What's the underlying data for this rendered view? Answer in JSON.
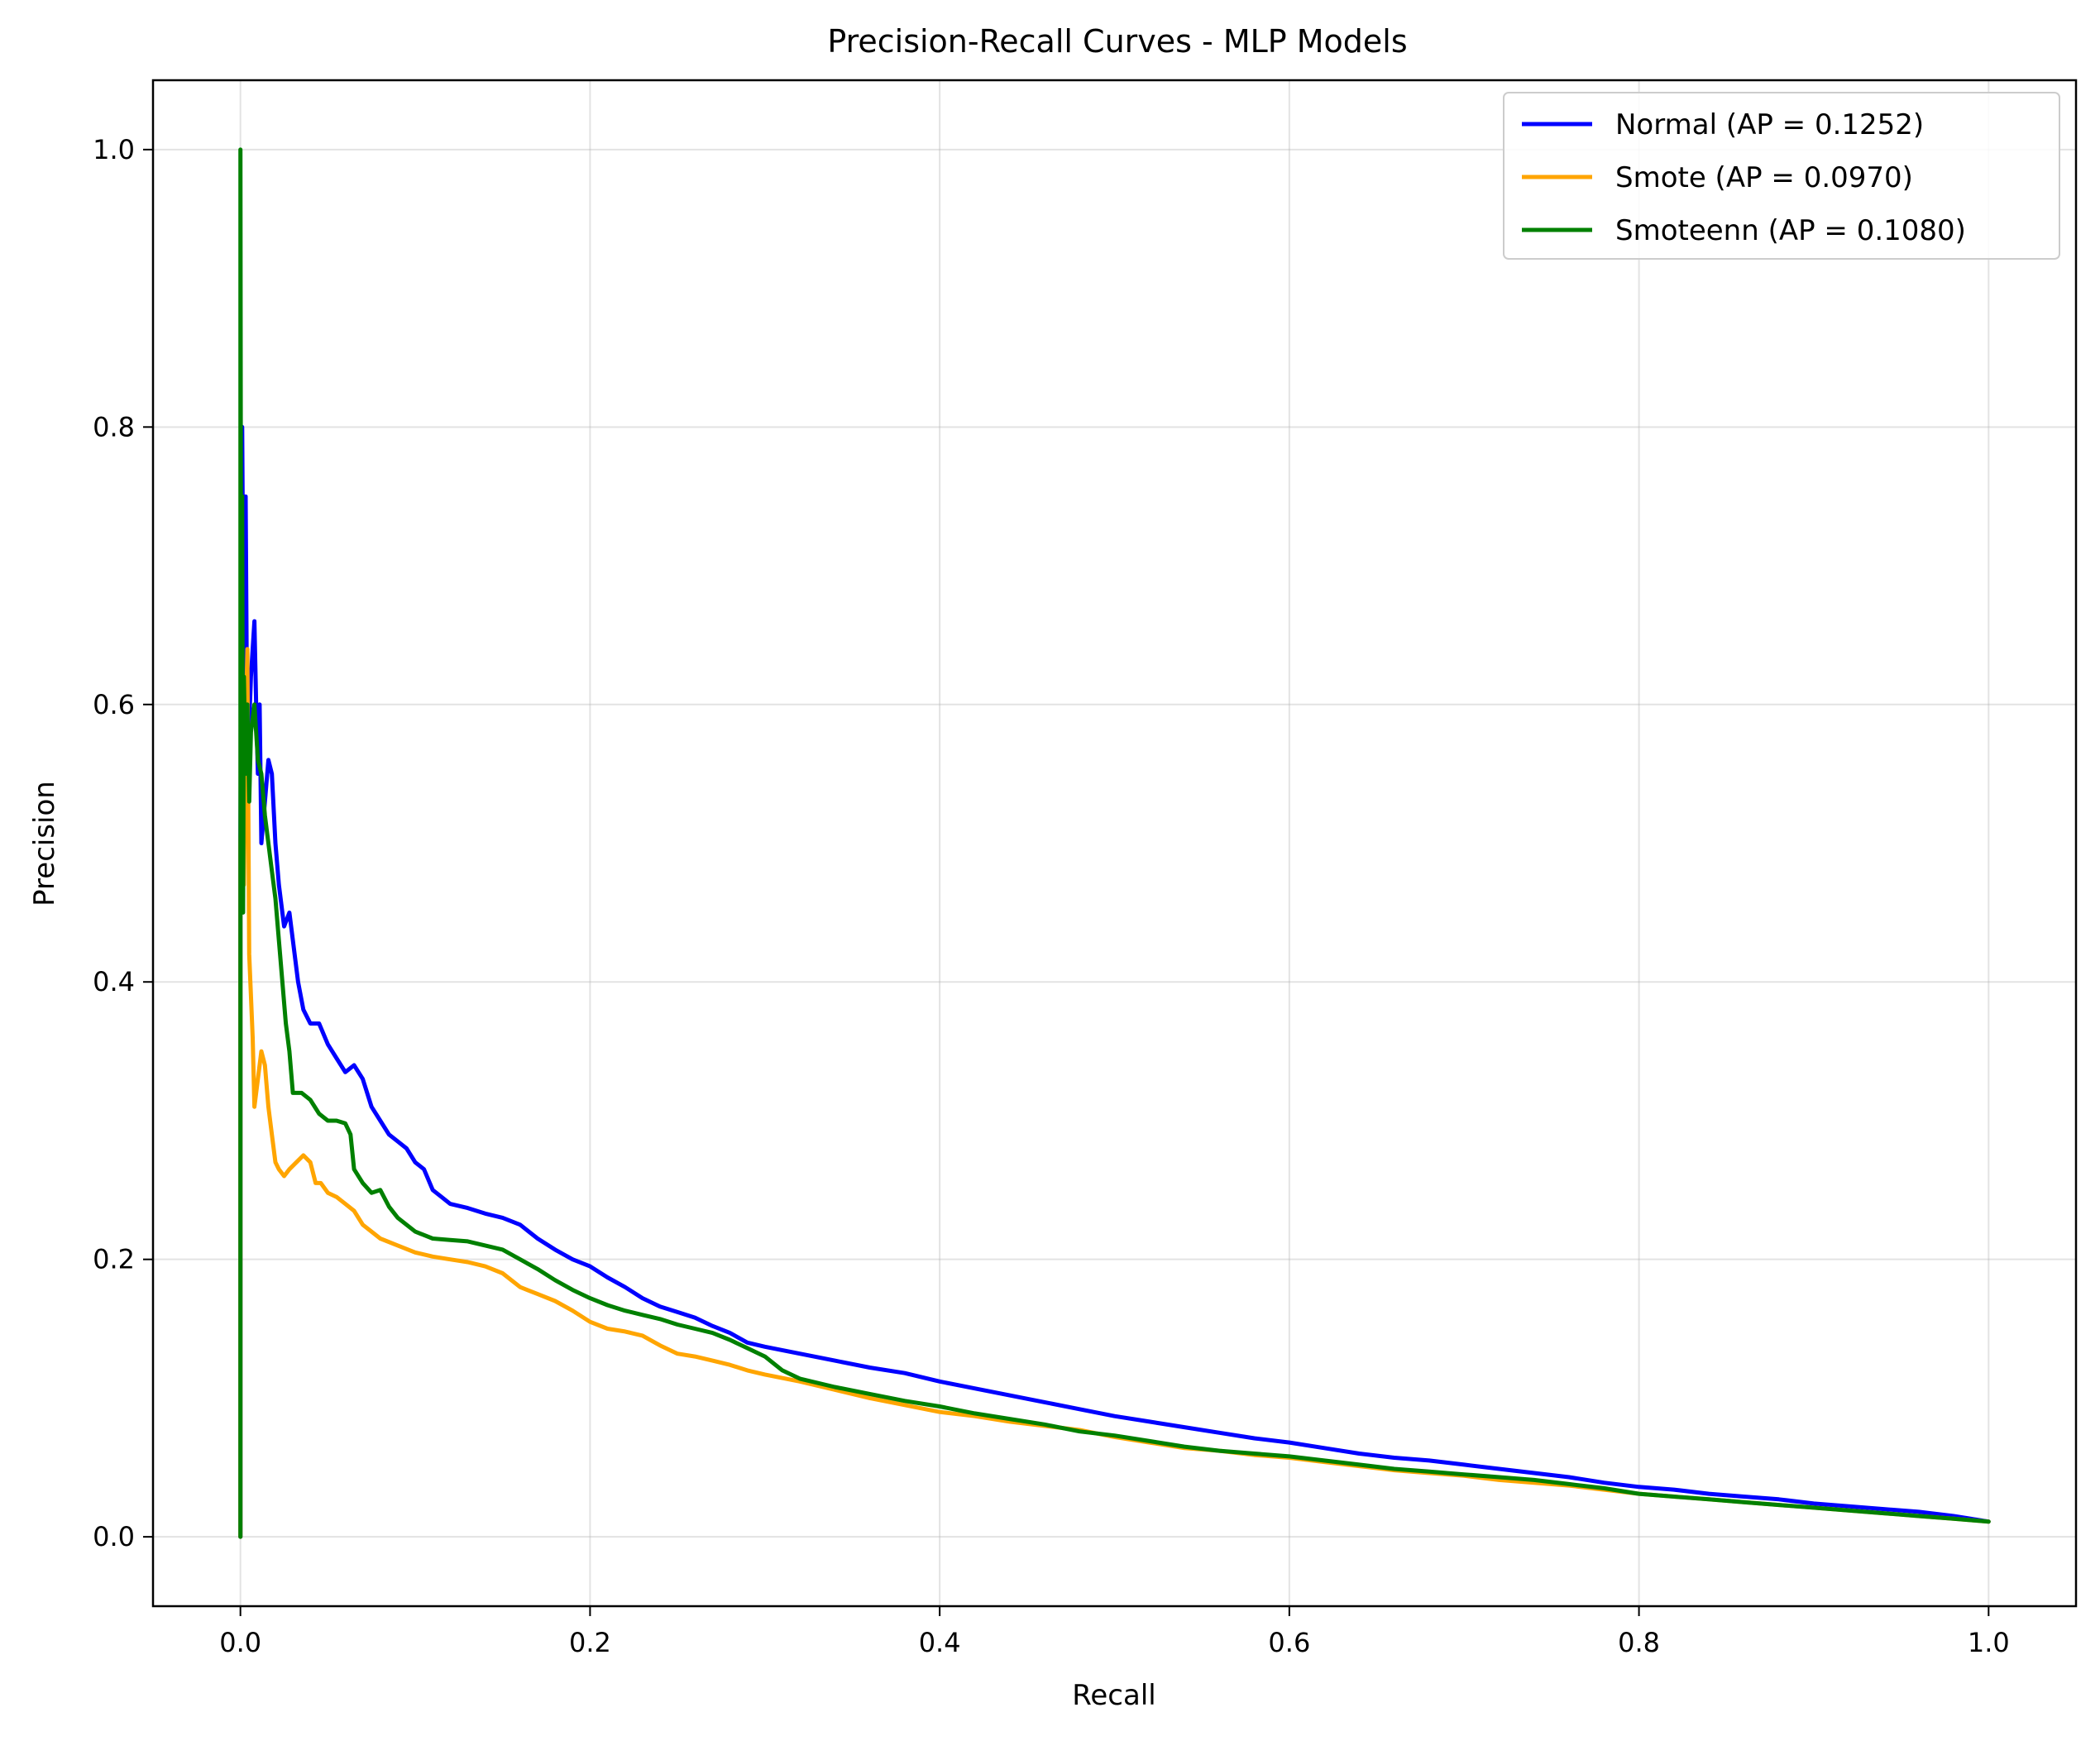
{
  "chart_data": {
    "type": "line",
    "title": "Precision-Recall Curves - MLP Models",
    "xlabel": "Recall",
    "ylabel": "Precision",
    "xlim": [
      -0.05,
      1.05
    ],
    "ylim": [
      -0.05,
      1.05
    ],
    "xticks": [
      0.0,
      0.2,
      0.4,
      0.6,
      0.8,
      1.0
    ],
    "yticks": [
      0.0,
      0.2,
      0.4,
      0.6,
      0.8,
      1.0
    ],
    "xtick_labels": [
      "0.0",
      "0.2",
      "0.4",
      "0.6",
      "0.8",
      "1.0"
    ],
    "ytick_labels": [
      "0.0",
      "0.2",
      "0.4",
      "0.6",
      "0.8",
      "1.0"
    ],
    "grid": true,
    "legend_position": "top-right",
    "series": [
      {
        "name": "Normal (AP = 0.1252)",
        "color": "#0000ff",
        "points": [
          [
            0.0,
            0.0
          ],
          [
            0.0,
            0.5
          ],
          [
            0.001,
            0.8
          ],
          [
            0.002,
            0.6
          ],
          [
            0.003,
            0.75
          ],
          [
            0.004,
            0.55
          ],
          [
            0.006,
            0.62
          ],
          [
            0.008,
            0.66
          ],
          [
            0.009,
            0.6
          ],
          [
            0.01,
            0.55
          ],
          [
            0.011,
            0.6
          ],
          [
            0.012,
            0.5
          ],
          [
            0.014,
            0.53
          ],
          [
            0.016,
            0.56
          ],
          [
            0.018,
            0.55
          ],
          [
            0.02,
            0.5
          ],
          [
            0.022,
            0.47
          ],
          [
            0.025,
            0.44
          ],
          [
            0.028,
            0.45
          ],
          [
            0.03,
            0.43
          ],
          [
            0.033,
            0.4
          ],
          [
            0.036,
            0.38
          ],
          [
            0.04,
            0.37
          ],
          [
            0.045,
            0.37
          ],
          [
            0.05,
            0.355
          ],
          [
            0.055,
            0.345
          ],
          [
            0.06,
            0.335
          ],
          [
            0.065,
            0.34
          ],
          [
            0.07,
            0.33
          ],
          [
            0.075,
            0.31
          ],
          [
            0.08,
            0.3
          ],
          [
            0.085,
            0.29
          ],
          [
            0.09,
            0.285
          ],
          [
            0.095,
            0.28
          ],
          [
            0.1,
            0.27
          ],
          [
            0.105,
            0.265
          ],
          [
            0.11,
            0.25
          ],
          [
            0.115,
            0.245
          ],
          [
            0.12,
            0.24
          ],
          [
            0.13,
            0.237
          ],
          [
            0.14,
            0.233
          ],
          [
            0.15,
            0.23
          ],
          [
            0.16,
            0.225
          ],
          [
            0.17,
            0.215
          ],
          [
            0.18,
            0.207
          ],
          [
            0.19,
            0.2
          ],
          [
            0.2,
            0.195
          ],
          [
            0.21,
            0.187
          ],
          [
            0.22,
            0.18
          ],
          [
            0.23,
            0.172
          ],
          [
            0.24,
            0.166
          ],
          [
            0.25,
            0.162
          ],
          [
            0.26,
            0.158
          ],
          [
            0.27,
            0.152
          ],
          [
            0.28,
            0.147
          ],
          [
            0.29,
            0.14
          ],
          [
            0.3,
            0.137
          ],
          [
            0.32,
            0.132
          ],
          [
            0.34,
            0.127
          ],
          [
            0.36,
            0.122
          ],
          [
            0.38,
            0.118
          ],
          [
            0.4,
            0.112
          ],
          [
            0.42,
            0.107
          ],
          [
            0.44,
            0.102
          ],
          [
            0.46,
            0.097
          ],
          [
            0.48,
            0.092
          ],
          [
            0.5,
            0.087
          ],
          [
            0.52,
            0.083
          ],
          [
            0.54,
            0.079
          ],
          [
            0.56,
            0.075
          ],
          [
            0.58,
            0.071
          ],
          [
            0.6,
            0.068
          ],
          [
            0.62,
            0.064
          ],
          [
            0.64,
            0.06
          ],
          [
            0.66,
            0.057
          ],
          [
            0.68,
            0.055
          ],
          [
            0.7,
            0.052
          ],
          [
            0.72,
            0.049
          ],
          [
            0.74,
            0.046
          ],
          [
            0.76,
            0.043
          ],
          [
            0.78,
            0.039
          ],
          [
            0.8,
            0.036
          ],
          [
            0.82,
            0.034
          ],
          [
            0.84,
            0.031
          ],
          [
            0.86,
            0.029
          ],
          [
            0.88,
            0.027
          ],
          [
            0.9,
            0.024
          ],
          [
            0.92,
            0.022
          ],
          [
            0.94,
            0.02
          ],
          [
            0.96,
            0.018
          ],
          [
            0.98,
            0.015
          ],
          [
            1.0,
            0.011
          ]
        ]
      },
      {
        "name": "Smote (AP = 0.0970)",
        "color": "#ffa500",
        "points": [
          [
            0.0,
            0.0
          ],
          [
            0.0,
            0.5
          ],
          [
            0.001,
            0.55
          ],
          [
            0.002,
            0.47
          ],
          [
            0.003,
            0.58
          ],
          [
            0.004,
            0.64
          ],
          [
            0.005,
            0.42
          ],
          [
            0.006,
            0.39
          ],
          [
            0.007,
            0.36
          ],
          [
            0.008,
            0.31
          ],
          [
            0.01,
            0.33
          ],
          [
            0.012,
            0.35
          ],
          [
            0.014,
            0.34
          ],
          [
            0.016,
            0.31
          ],
          [
            0.018,
            0.29
          ],
          [
            0.02,
            0.27
          ],
          [
            0.022,
            0.265
          ],
          [
            0.025,
            0.26
          ],
          [
            0.028,
            0.265
          ],
          [
            0.032,
            0.27
          ],
          [
            0.036,
            0.275
          ],
          [
            0.04,
            0.27
          ],
          [
            0.043,
            0.255
          ],
          [
            0.046,
            0.255
          ],
          [
            0.05,
            0.248
          ],
          [
            0.055,
            0.245
          ],
          [
            0.06,
            0.24
          ],
          [
            0.065,
            0.235
          ],
          [
            0.07,
            0.225
          ],
          [
            0.075,
            0.22
          ],
          [
            0.08,
            0.215
          ],
          [
            0.09,
            0.21
          ],
          [
            0.1,
            0.205
          ],
          [
            0.11,
            0.202
          ],
          [
            0.12,
            0.2
          ],
          [
            0.13,
            0.198
          ],
          [
            0.14,
            0.195
          ],
          [
            0.15,
            0.19
          ],
          [
            0.16,
            0.18
          ],
          [
            0.17,
            0.175
          ],
          [
            0.18,
            0.17
          ],
          [
            0.19,
            0.163
          ],
          [
            0.2,
            0.155
          ],
          [
            0.21,
            0.15
          ],
          [
            0.22,
            0.148
          ],
          [
            0.23,
            0.145
          ],
          [
            0.24,
            0.138
          ],
          [
            0.25,
            0.132
          ],
          [
            0.26,
            0.13
          ],
          [
            0.27,
            0.127
          ],
          [
            0.28,
            0.124
          ],
          [
            0.29,
            0.12
          ],
          [
            0.3,
            0.117
          ],
          [
            0.32,
            0.112
          ],
          [
            0.34,
            0.106
          ],
          [
            0.36,
            0.1
          ],
          [
            0.38,
            0.095
          ],
          [
            0.4,
            0.09
          ],
          [
            0.42,
            0.087
          ],
          [
            0.44,
            0.083
          ],
          [
            0.46,
            0.08
          ],
          [
            0.48,
            0.077
          ],
          [
            0.5,
            0.072
          ],
          [
            0.52,
            0.068
          ],
          [
            0.54,
            0.064
          ],
          [
            0.56,
            0.062
          ],
          [
            0.58,
            0.059
          ],
          [
            0.6,
            0.057
          ],
          [
            0.62,
            0.054
          ],
          [
            0.64,
            0.051
          ],
          [
            0.66,
            0.048
          ],
          [
            0.68,
            0.046
          ],
          [
            0.7,
            0.044
          ],
          [
            0.72,
            0.041
          ],
          [
            0.74,
            0.039
          ],
          [
            0.76,
            0.037
          ],
          [
            0.78,
            0.034
          ],
          [
            0.8,
            0.031
          ],
          [
            0.82,
            0.029
          ],
          [
            0.84,
            0.027
          ],
          [
            0.86,
            0.025
          ],
          [
            0.88,
            0.023
          ],
          [
            0.9,
            0.021
          ],
          [
            0.92,
            0.019
          ],
          [
            0.94,
            0.017
          ],
          [
            0.96,
            0.015
          ],
          [
            0.98,
            0.013
          ],
          [
            1.0,
            0.011
          ]
        ]
      },
      {
        "name": "Smoteenn (AP = 0.1080)",
        "color": "#008000",
        "points": [
          [
            0.0,
            0.0
          ],
          [
            0.0,
            1.0
          ],
          [
            0.0005,
            0.5
          ],
          [
            0.001,
            0.75
          ],
          [
            0.0015,
            0.45
          ],
          [
            0.002,
            0.62
          ],
          [
            0.003,
            0.55
          ],
          [
            0.004,
            0.6
          ],
          [
            0.005,
            0.53
          ],
          [
            0.006,
            0.58
          ],
          [
            0.008,
            0.6
          ],
          [
            0.01,
            0.56
          ],
          [
            0.012,
            0.55
          ],
          [
            0.014,
            0.52
          ],
          [
            0.016,
            0.5
          ],
          [
            0.018,
            0.48
          ],
          [
            0.02,
            0.46
          ],
          [
            0.022,
            0.43
          ],
          [
            0.024,
            0.4
          ],
          [
            0.026,
            0.37
          ],
          [
            0.028,
            0.35
          ],
          [
            0.03,
            0.32
          ],
          [
            0.035,
            0.32
          ],
          [
            0.04,
            0.315
          ],
          [
            0.045,
            0.305
          ],
          [
            0.05,
            0.3
          ],
          [
            0.055,
            0.3
          ],
          [
            0.06,
            0.298
          ],
          [
            0.063,
            0.29
          ],
          [
            0.065,
            0.265
          ],
          [
            0.07,
            0.255
          ],
          [
            0.075,
            0.248
          ],
          [
            0.08,
            0.25
          ],
          [
            0.085,
            0.238
          ],
          [
            0.09,
            0.23
          ],
          [
            0.1,
            0.22
          ],
          [
            0.11,
            0.215
          ],
          [
            0.12,
            0.214
          ],
          [
            0.13,
            0.213
          ],
          [
            0.14,
            0.21
          ],
          [
            0.15,
            0.207
          ],
          [
            0.16,
            0.2
          ],
          [
            0.17,
            0.193
          ],
          [
            0.18,
            0.185
          ],
          [
            0.19,
            0.178
          ],
          [
            0.2,
            0.172
          ],
          [
            0.21,
            0.167
          ],
          [
            0.22,
            0.163
          ],
          [
            0.23,
            0.16
          ],
          [
            0.24,
            0.157
          ],
          [
            0.25,
            0.153
          ],
          [
            0.26,
            0.15
          ],
          [
            0.27,
            0.147
          ],
          [
            0.28,
            0.142
          ],
          [
            0.29,
            0.136
          ],
          [
            0.3,
            0.13
          ],
          [
            0.31,
            0.12
          ],
          [
            0.32,
            0.114
          ],
          [
            0.34,
            0.108
          ],
          [
            0.36,
            0.103
          ],
          [
            0.38,
            0.098
          ],
          [
            0.4,
            0.094
          ],
          [
            0.42,
            0.089
          ],
          [
            0.44,
            0.085
          ],
          [
            0.46,
            0.081
          ],
          [
            0.48,
            0.076
          ],
          [
            0.5,
            0.073
          ],
          [
            0.52,
            0.069
          ],
          [
            0.54,
            0.065
          ],
          [
            0.56,
            0.062
          ],
          [
            0.58,
            0.06
          ],
          [
            0.6,
            0.058
          ],
          [
            0.62,
            0.055
          ],
          [
            0.64,
            0.052
          ],
          [
            0.66,
            0.049
          ],
          [
            0.68,
            0.047
          ],
          [
            0.7,
            0.045
          ],
          [
            0.72,
            0.043
          ],
          [
            0.74,
            0.041
          ],
          [
            0.76,
            0.038
          ],
          [
            0.78,
            0.035
          ],
          [
            0.8,
            0.031
          ],
          [
            0.82,
            0.029
          ],
          [
            0.84,
            0.027
          ],
          [
            0.86,
            0.025
          ],
          [
            0.88,
            0.023
          ],
          [
            0.9,
            0.021
          ],
          [
            0.92,
            0.019
          ],
          [
            0.94,
            0.017
          ],
          [
            0.96,
            0.015
          ],
          [
            0.98,
            0.013
          ],
          [
            1.0,
            0.011
          ]
        ]
      }
    ]
  }
}
